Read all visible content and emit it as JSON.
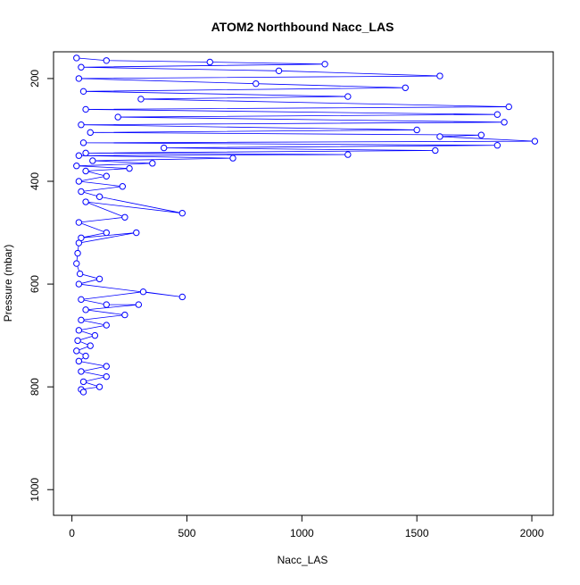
{
  "chart_data": {
    "type": "line",
    "marker": "circle",
    "title": "ATOM2 Northbound Nacc_LAS",
    "x_label": "Nacc_LAS",
    "y_label": "Pressure (mbar)",
    "color": "#0000ff",
    "x": [
      20,
      150,
      600,
      1100,
      40,
      900,
      1600,
      30,
      800,
      1450,
      50,
      1200,
      300,
      1900,
      60,
      1850,
      200,
      1880,
      40,
      1500,
      80,
      1780,
      1600,
      2013,
      50,
      1850,
      400,
      1580,
      60,
      1200,
      30,
      700,
      90,
      350,
      20,
      250,
      60,
      150,
      30,
      220,
      40,
      120,
      480,
      60,
      230,
      30,
      150,
      40,
      280,
      30,
      25,
      20,
      35,
      120,
      30,
      480,
      310,
      40,
      150,
      290,
      60,
      230,
      40,
      150,
      30,
      100,
      25,
      80,
      20,
      60,
      30,
      150,
      40,
      150,
      50,
      120,
      40,
      50
    ],
    "values": [
      160,
      165,
      168,
      172,
      178,
      185,
      195,
      200,
      210,
      218,
      225,
      235,
      240,
      255,
      260,
      270,
      275,
      285,
      290,
      300,
      305,
      310,
      313,
      322,
      325,
      330,
      335,
      340,
      345,
      348,
      350,
      355,
      360,
      365,
      370,
      375,
      380,
      390,
      400,
      410,
      420,
      430,
      462,
      440,
      470,
      480,
      500,
      510,
      500,
      520,
      540,
      560,
      580,
      590,
      600,
      625,
      615,
      630,
      640,
      640,
      650,
      660,
      670,
      680,
      690,
      700,
      710,
      720,
      730,
      740,
      750,
      760,
      770,
      780,
      790,
      800,
      805,
      810
    ],
    "xlim": [
      -80,
      2093
    ],
    "ylim": [
      1050,
      148
    ],
    "xticks": [
      0,
      500,
      1000,
      1500,
      2000
    ],
    "yticks": [
      200,
      400,
      600,
      800,
      1000
    ]
  }
}
